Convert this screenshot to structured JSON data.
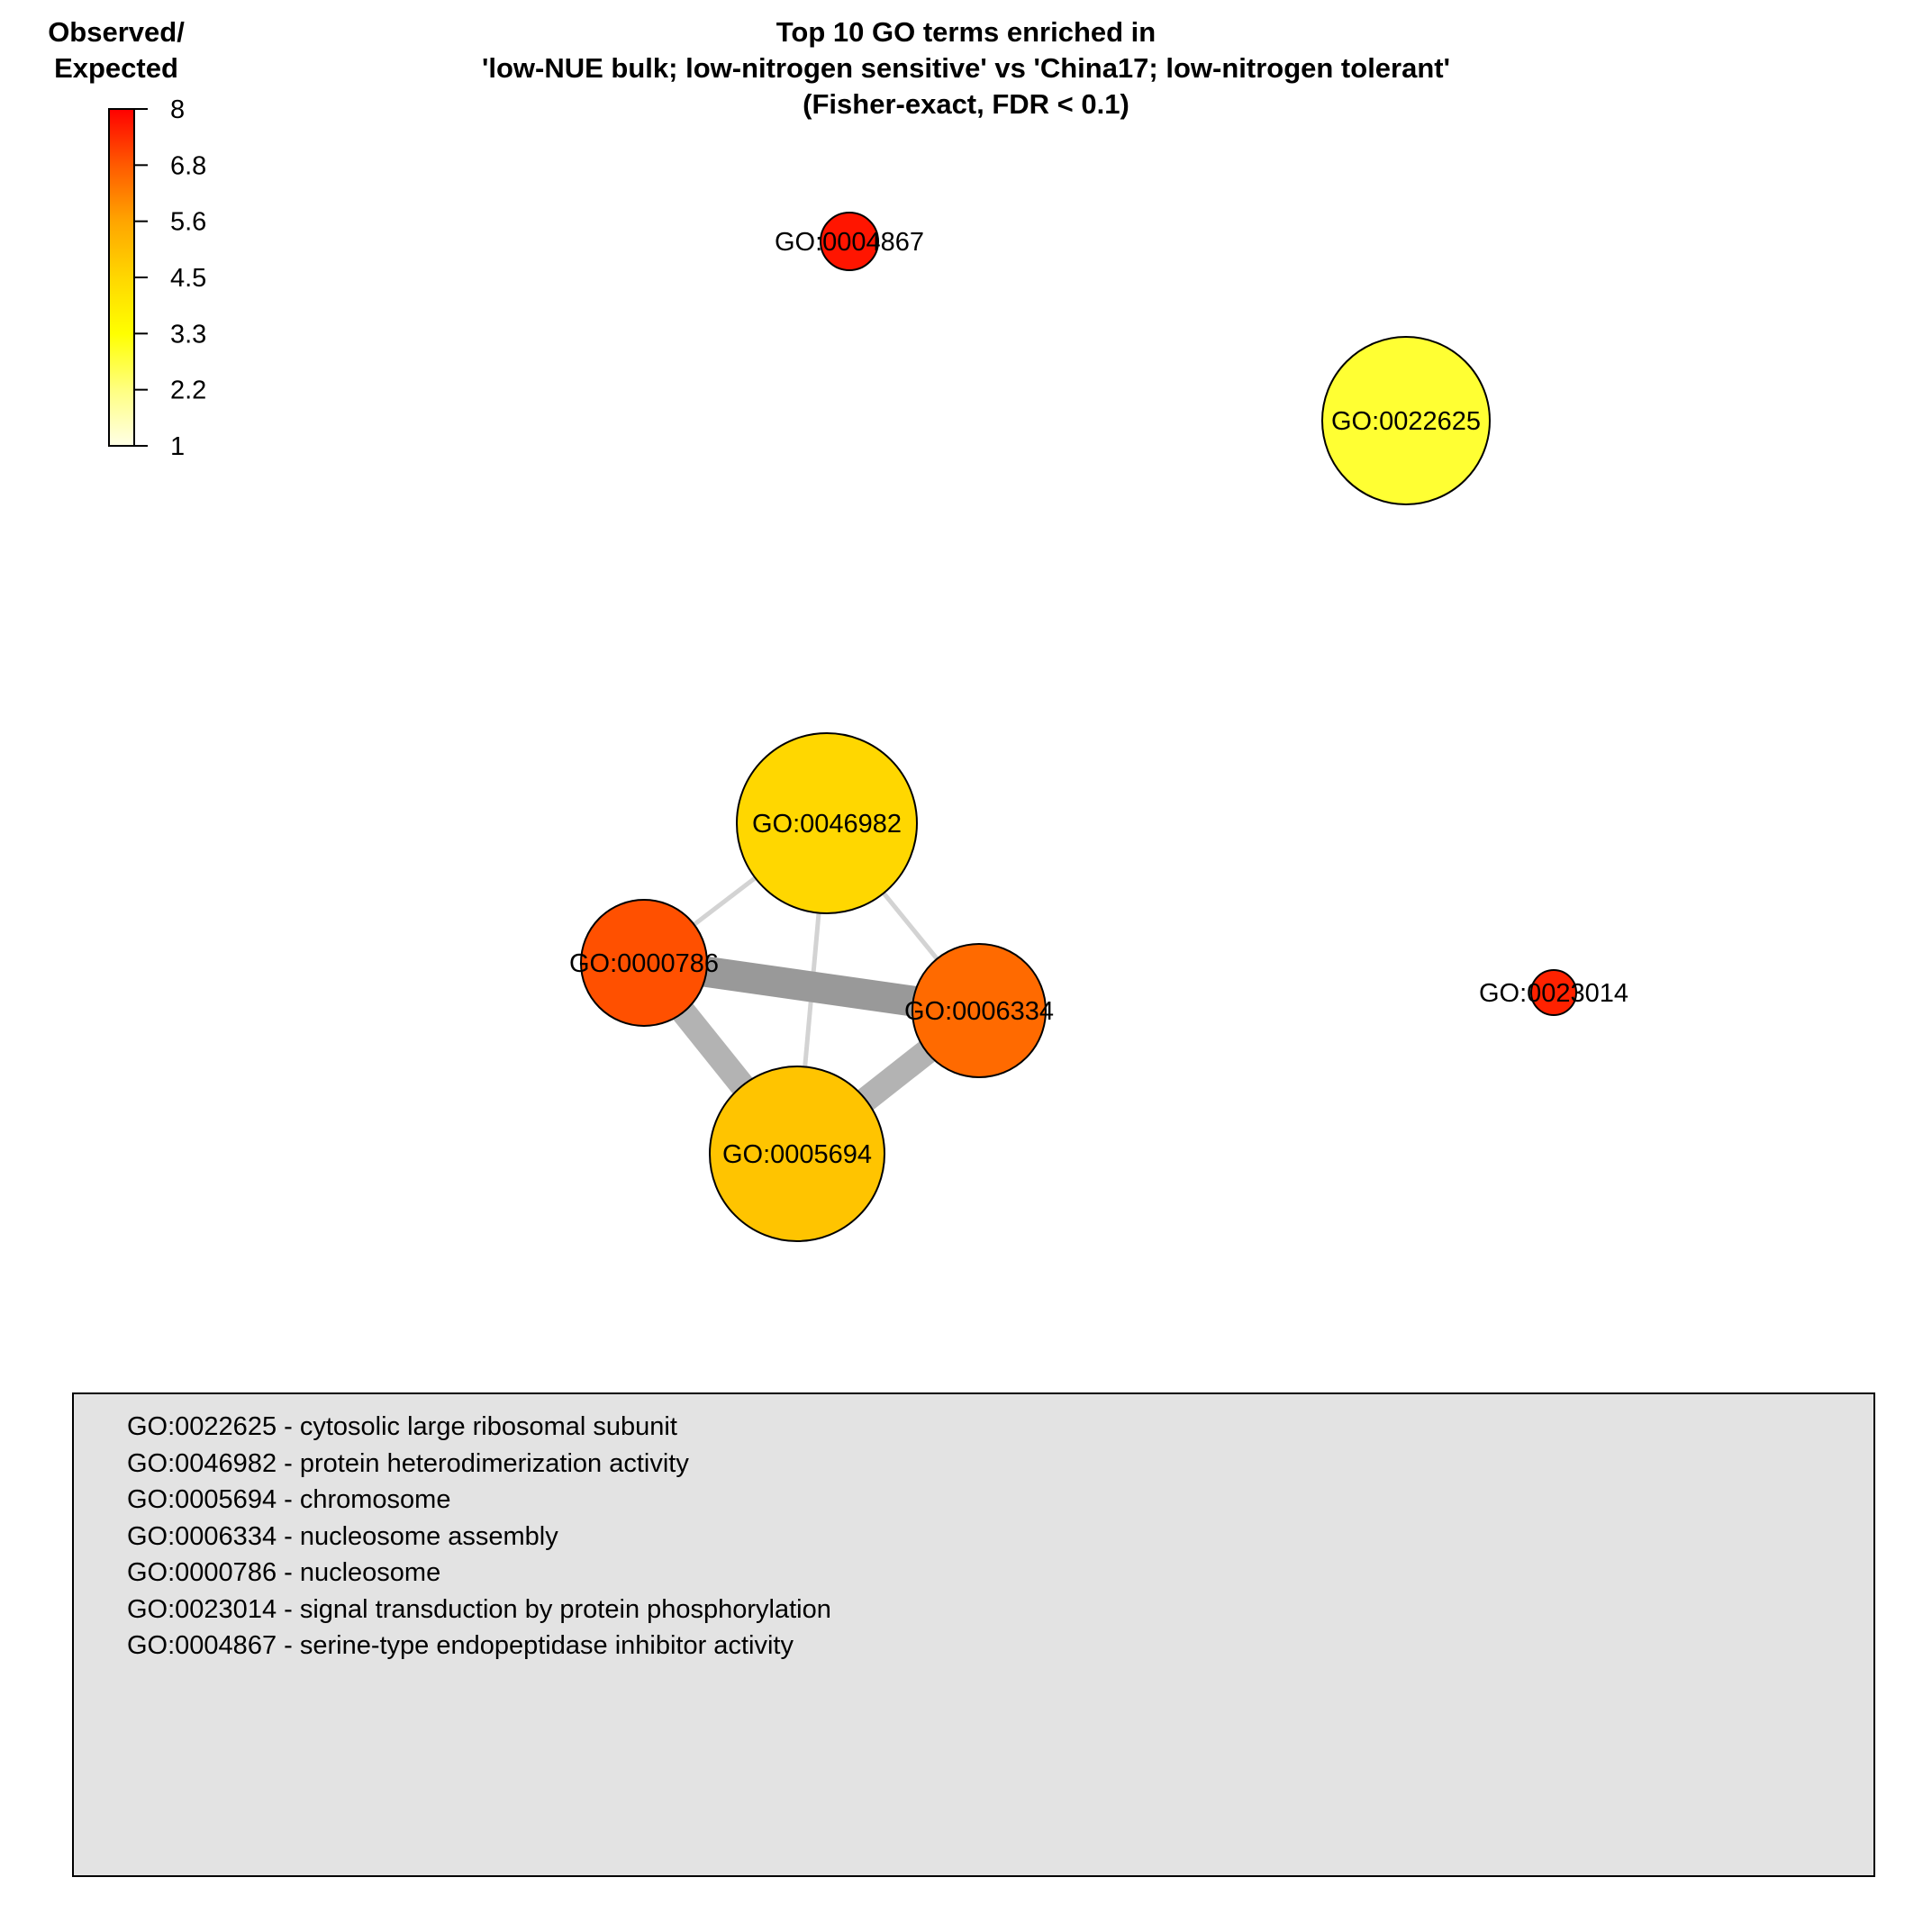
{
  "title_lines": [
    "Top 10 GO terms enriched in",
    "'low-NUE bulk; low-nitrogen sensitive' vs 'China17; low-nitrogen tolerant'",
    "(Fisher-exact, FDR < 0.1)"
  ],
  "color_scale": {
    "title_lines": [
      "Observed/",
      "Expected"
    ],
    "ticks": [
      "8",
      "6.8",
      "5.6",
      "4.5",
      "3.3",
      "2.2",
      "1"
    ],
    "colors": [
      "#ffffe6",
      "#ffff80",
      "#ffff00",
      "#ffd700",
      "#ffa500",
      "#ff5a00",
      "#ff0000"
    ]
  },
  "nodes": [
    {
      "id": "GO:0004867",
      "label": "GO:0004867",
      "color": "#ff1500"
    },
    {
      "id": "GO:0022625",
      "label": "GO:0022625",
      "color": "#ffff33"
    },
    {
      "id": "GO:0046982",
      "label": "GO:0046982",
      "color": "#ffd700"
    },
    {
      "id": "GO:0000786",
      "label": "GO:0000786",
      "color": "#ff5000"
    },
    {
      "id": "GO:0006334",
      "label": "GO:0006334",
      "color": "#ff6a00"
    },
    {
      "id": "GO:0005694",
      "label": "GO:0005694",
      "color": "#ffc400"
    },
    {
      "id": "GO:0023014",
      "label": "GO:0023014",
      "color": "#ff2200"
    }
  ],
  "edges": [
    {
      "source": "GO:0000786",
      "target": "GO:0046982",
      "color": "#d3d3d3"
    },
    {
      "source": "GO:0046982",
      "target": "GO:0006334",
      "color": "#d3d3d3"
    },
    {
      "source": "GO:0046982",
      "target": "GO:0005694",
      "color": "#d3d3d3"
    },
    {
      "source": "GO:0000786",
      "target": "GO:0006334",
      "color": "#999999"
    },
    {
      "source": "GO:0000786",
      "target": "GO:0005694",
      "color": "#b3b3b3"
    },
    {
      "source": "GO:0006334",
      "target": "GO:0005694",
      "color": "#b3b3b3"
    }
  ],
  "legend_entries": [
    "GO:0022625 - cytosolic large ribosomal subunit",
    "GO:0046982 - protein heterodimerization activity",
    "GO:0005694 - chromosome",
    "GO:0006334 - nucleosome assembly",
    "GO:0000786 - nucleosome",
    "GO:0023014 - signal transduction by protein phosphorylation",
    "GO:0004867 - serine-type endopeptidase inhibitor activity"
  ]
}
